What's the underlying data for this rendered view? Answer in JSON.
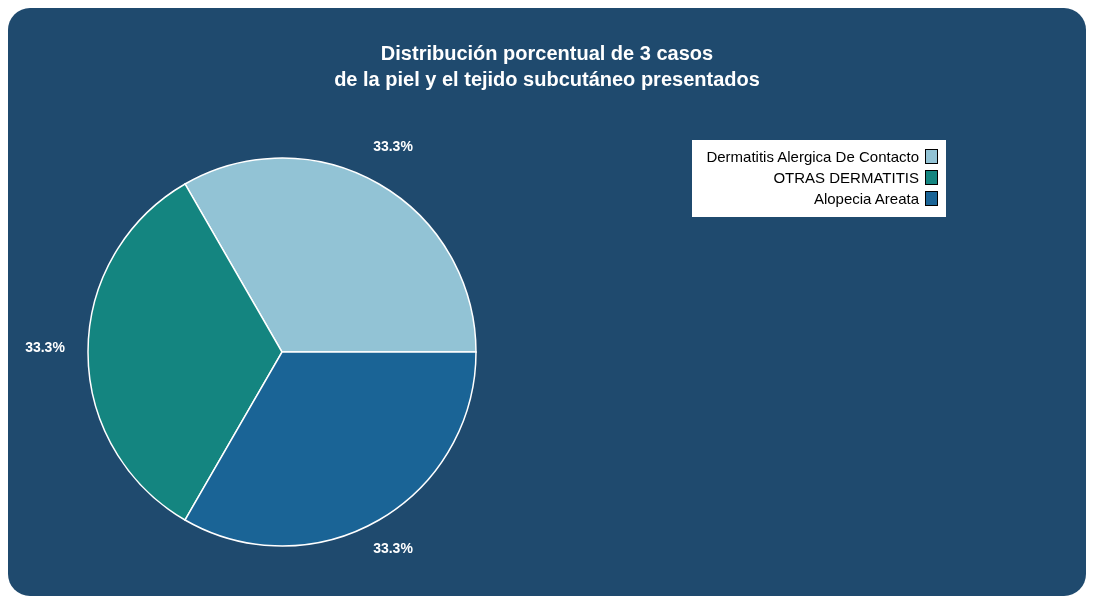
{
  "chart_data": {
    "type": "pie",
    "title": "Distribución porcentual de 3 casos\nde la piel y el tejido subcutáneo presentados",
    "categories": [
      "Dermatitis Alergica De Contacto",
      "OTRAS DERMATITIS",
      "Alopecia Areata"
    ],
    "values": [
      33.3,
      33.3,
      33.3
    ],
    "colors": [
      "#92c3d5",
      "#148580",
      "#1a6496"
    ],
    "value_labels": [
      "33.3%",
      "33.3%",
      "33.3%"
    ],
    "legend": "top right"
  }
}
